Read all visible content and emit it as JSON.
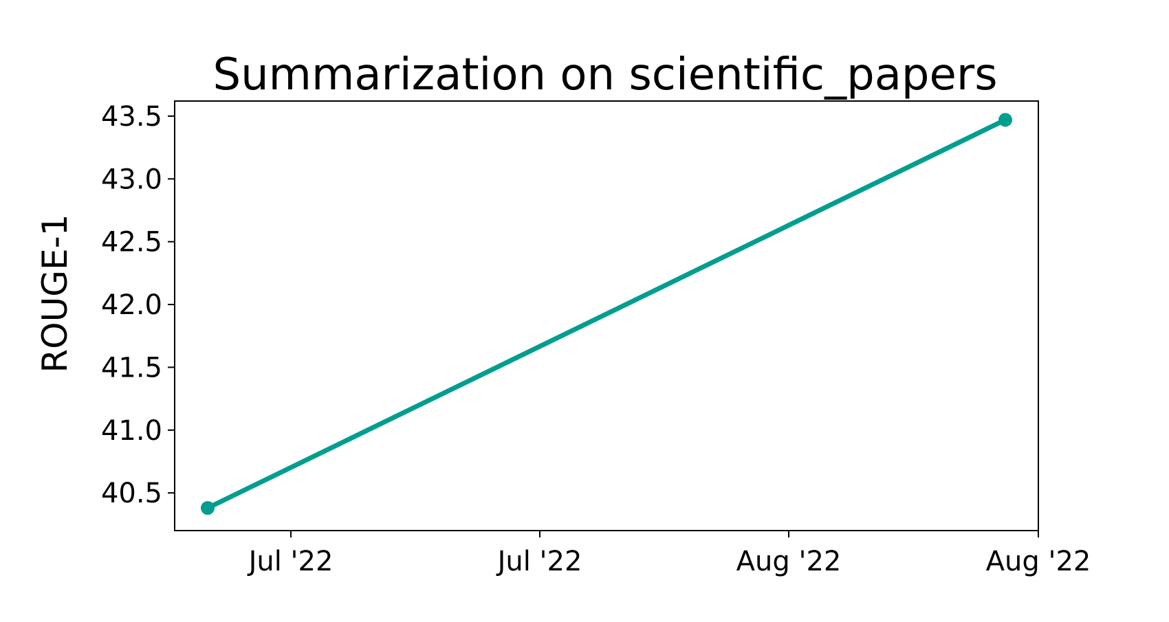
{
  "chart_data": {
    "type": "line",
    "title": "Summarization on scientific_papers",
    "xlabel": "",
    "ylabel": "ROUGE-1",
    "x_ticks": [
      "Jul '22",
      "Jul '22",
      "Aug '22",
      "Aug '22"
    ],
    "y_ticks": [
      "40.5",
      "41.0",
      "41.5",
      "42.0",
      "42.5",
      "43.0",
      "43.5"
    ],
    "ylim": [
      40.2,
      43.62
    ],
    "grid": false,
    "series": [
      {
        "color": "#009e8f",
        "points": [
          {
            "x": "Jun 2022",
            "y": 40.38
          },
          {
            "x": "Aug 2022",
            "y": 43.47
          }
        ]
      }
    ]
  }
}
